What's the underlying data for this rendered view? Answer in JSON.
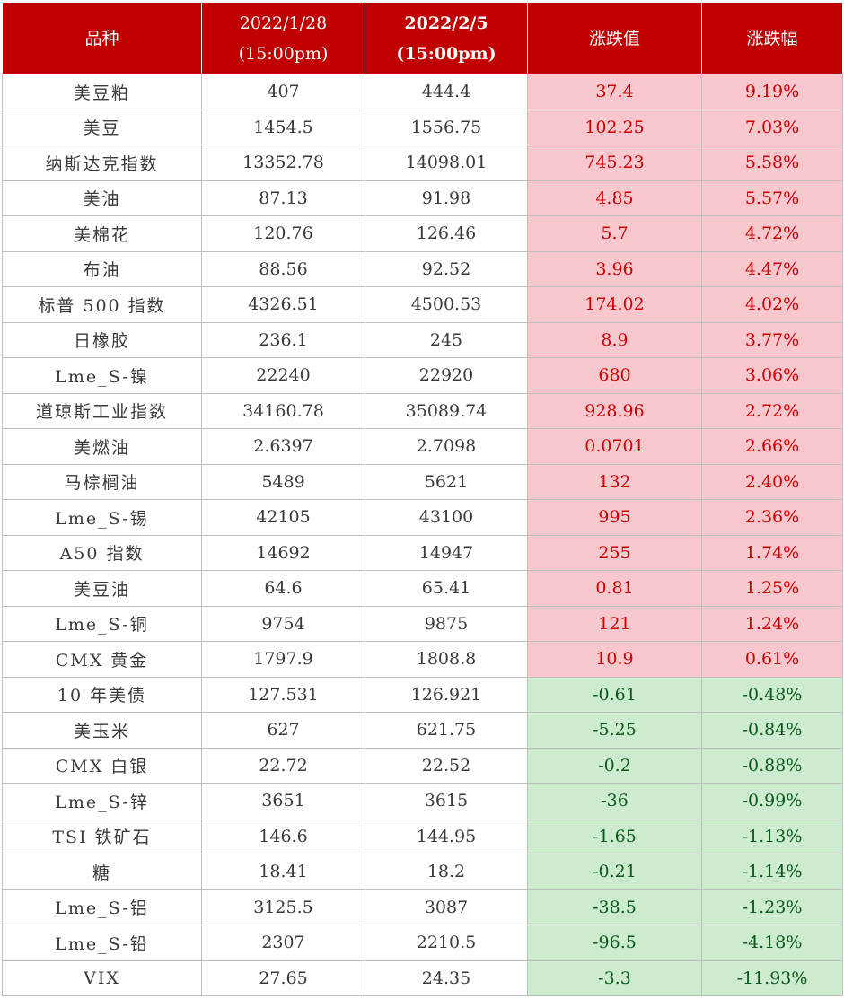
{
  "header": {
    "col_variety": "品种",
    "col_date1": "2022/1/28",
    "col_time1": "(15:00pm)",
    "col_date2": "2022/2/5",
    "col_time2": "(15:00pm)",
    "col_change": "涨跌值",
    "col_change_pct": "涨跌幅"
  },
  "colors": {
    "header_bg": "#c00000",
    "up_bg": "#f8c8ce",
    "up_text": "#d00000",
    "down_bg": "#cdeccf",
    "down_text": "#0a5a1c"
  },
  "rows": [
    {
      "name": "美豆粕",
      "v1": "407",
      "v2": "444.4",
      "change": "37.4",
      "pct": "9.19%",
      "dir": "up"
    },
    {
      "name": "美豆",
      "v1": "1454.5",
      "v2": "1556.75",
      "change": "102.25",
      "pct": "7.03%",
      "dir": "up"
    },
    {
      "name": "纳斯达克指数",
      "v1": "13352.78",
      "v2": "14098.01",
      "change": "745.23",
      "pct": "5.58%",
      "dir": "up"
    },
    {
      "name": "美油",
      "v1": "87.13",
      "v2": "91.98",
      "change": "4.85",
      "pct": "5.57%",
      "dir": "up"
    },
    {
      "name": "美棉花",
      "v1": "120.76",
      "v2": "126.46",
      "change": "5.7",
      "pct": "4.72%",
      "dir": "up"
    },
    {
      "name": "布油",
      "v1": "88.56",
      "v2": "92.52",
      "change": "3.96",
      "pct": "4.47%",
      "dir": "up"
    },
    {
      "name": "标普 500 指数",
      "v1": "4326.51",
      "v2": "4500.53",
      "change": "174.02",
      "pct": "4.02%",
      "dir": "up"
    },
    {
      "name": "日橡胶",
      "v1": "236.1",
      "v2": "245",
      "change": "8.9",
      "pct": "3.77%",
      "dir": "up"
    },
    {
      "name": "Lme_S-镍",
      "v1": "22240",
      "v2": "22920",
      "change": "680",
      "pct": "3.06%",
      "dir": "up"
    },
    {
      "name": "道琼斯工业指数",
      "v1": "34160.78",
      "v2": "35089.74",
      "change": "928.96",
      "pct": "2.72%",
      "dir": "up"
    },
    {
      "name": "美燃油",
      "v1": "2.6397",
      "v2": "2.7098",
      "change": "0.0701",
      "pct": "2.66%",
      "dir": "up"
    },
    {
      "name": "马棕榈油",
      "v1": "5489",
      "v2": "5621",
      "change": "132",
      "pct": "2.40%",
      "dir": "up"
    },
    {
      "name": "Lme_S-锡",
      "v1": "42105",
      "v2": "43100",
      "change": "995",
      "pct": "2.36%",
      "dir": "up"
    },
    {
      "name": "A50 指数",
      "v1": "14692",
      "v2": "14947",
      "change": "255",
      "pct": "1.74%",
      "dir": "up"
    },
    {
      "name": "美豆油",
      "v1": "64.6",
      "v2": "65.41",
      "change": "0.81",
      "pct": "1.25%",
      "dir": "up"
    },
    {
      "name": "Lme_S-铜",
      "v1": "9754",
      "v2": "9875",
      "change": "121",
      "pct": "1.24%",
      "dir": "up"
    },
    {
      "name": "CMX 黄金",
      "v1": "1797.9",
      "v2": "1808.8",
      "change": "10.9",
      "pct": "0.61%",
      "dir": "up"
    },
    {
      "name": "10 年美债",
      "v1": "127.531",
      "v2": "126.921",
      "change": "-0.61",
      "pct": "-0.48%",
      "dir": "down"
    },
    {
      "name": "美玉米",
      "v1": "627",
      "v2": "621.75",
      "change": "-5.25",
      "pct": "-0.84%",
      "dir": "down"
    },
    {
      "name": "CMX 白银",
      "v1": "22.72",
      "v2": "22.52",
      "change": "-0.2",
      "pct": "-0.88%",
      "dir": "down"
    },
    {
      "name": "Lme_S-锌",
      "v1": "3651",
      "v2": "3615",
      "change": "-36",
      "pct": "-0.99%",
      "dir": "down"
    },
    {
      "name": "TSI 铁矿石",
      "v1": "146.6",
      "v2": "144.95",
      "change": "-1.65",
      "pct": "-1.13%",
      "dir": "down"
    },
    {
      "name": "糖",
      "v1": "18.41",
      "v2": "18.2",
      "change": "-0.21",
      "pct": "-1.14%",
      "dir": "down"
    },
    {
      "name": "Lme_S-铝",
      "v1": "3125.5",
      "v2": "3087",
      "change": "-38.5",
      "pct": "-1.23%",
      "dir": "down"
    },
    {
      "name": "Lme_S-铅",
      "v1": "2307",
      "v2": "2210.5",
      "change": "-96.5",
      "pct": "-4.18%",
      "dir": "down"
    },
    {
      "name": "VIX",
      "v1": "27.65",
      "v2": "24.35",
      "change": "-3.3",
      "pct": "-11.93%",
      "dir": "down"
    }
  ]
}
